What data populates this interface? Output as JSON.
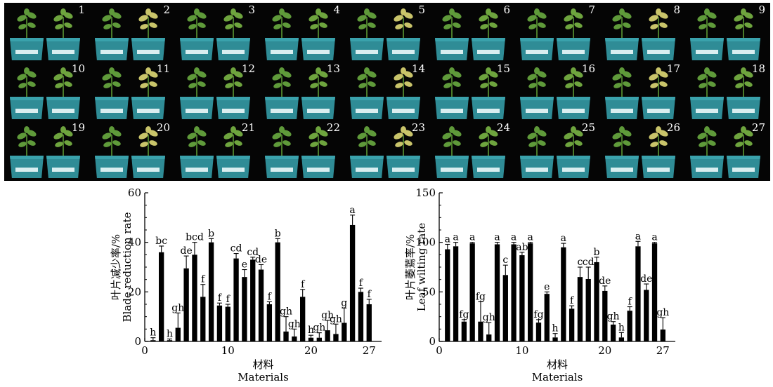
{
  "photo_panel": {
    "pot_numbers": [
      "1",
      "2",
      "3",
      "4",
      "5",
      "6",
      "7",
      "8",
      "9",
      "10",
      "11",
      "12",
      "13",
      "14",
      "15",
      "16",
      "17",
      "18",
      "19",
      "20",
      "21",
      "22",
      "23",
      "24",
      "25",
      "26",
      "27"
    ]
  },
  "chart_data": [
    {
      "type": "bar",
      "ylabel_cn": "叶片减少率/%",
      "ylabel_en": "Blade reduction rate",
      "xlabel_cn": "材料",
      "xlabel_en": "Materials",
      "ylim": [
        0,
        60
      ],
      "yticks": [
        0,
        20,
        40,
        60
      ],
      "xlim": [
        0,
        28.5
      ],
      "xticks": [
        0,
        10,
        20,
        27
      ],
      "bars": [
        {
          "x": 1,
          "value": 0.5,
          "err": 1,
          "sig": "h"
        },
        {
          "x": 2,
          "value": 36,
          "err": 2.5,
          "sig": "bc"
        },
        {
          "x": 3,
          "value": 0.5,
          "err": 0.5,
          "sig": "h"
        },
        {
          "x": 4,
          "value": 5.5,
          "err": 6,
          "sig": "gh"
        },
        {
          "x": 5,
          "value": 29.5,
          "err": 5,
          "sig": "de"
        },
        {
          "x": 6,
          "value": 35,
          "err": 5,
          "sig": "bcd"
        },
        {
          "x": 7,
          "value": 18,
          "err": 5,
          "sig": "f"
        },
        {
          "x": 8,
          "value": 40,
          "err": 1.5,
          "sig": "b"
        },
        {
          "x": 9,
          "value": 14.5,
          "err": 1,
          "sig": "f"
        },
        {
          "x": 10,
          "value": 14,
          "err": 1,
          "sig": "f"
        },
        {
          "x": 11,
          "value": 33.5,
          "err": 2,
          "sig": "cd"
        },
        {
          "x": 12,
          "value": 26,
          "err": 3,
          "sig": "e"
        },
        {
          "x": 13,
          "value": 33,
          "err": 1,
          "sig": "cd"
        },
        {
          "x": 14,
          "value": 29,
          "err": 2,
          "sig": "de"
        },
        {
          "x": 15,
          "value": 15,
          "err": 1,
          "sig": "f"
        },
        {
          "x": 16,
          "value": 40,
          "err": 1.5,
          "sig": "b"
        },
        {
          "x": 17,
          "value": 4,
          "err": 6,
          "sig": "gh"
        },
        {
          "x": 18,
          "value": 2,
          "err": 3,
          "sig": "gh"
        },
        {
          "x": 19,
          "value": 18,
          "err": 3,
          "sig": "f"
        },
        {
          "x": 20,
          "value": 1.5,
          "err": 1,
          "sig": "h"
        },
        {
          "x": 21,
          "value": 1.5,
          "err": 2,
          "sig": "gh"
        },
        {
          "x": 22,
          "value": 4.5,
          "err": 4,
          "sig": "gh"
        },
        {
          "x": 23,
          "value": 3,
          "err": 4,
          "sig": "gh"
        },
        {
          "x": 24,
          "value": 7.5,
          "err": 6,
          "sig": "g"
        },
        {
          "x": 25,
          "value": 47,
          "err": 4,
          "sig": "a"
        },
        {
          "x": 26,
          "value": 20,
          "err": 1.5,
          "sig": "f"
        },
        {
          "x": 27,
          "value": 15,
          "err": 2,
          "sig": "f"
        }
      ]
    },
    {
      "type": "bar",
      "ylabel_cn": "叶片萎蔫率/%",
      "ylabel_en": "Leaf wilting rate",
      "xlabel_cn": "材料",
      "xlabel_en": "Materials",
      "ylim": [
        0,
        150
      ],
      "yticks": [
        0,
        50,
        100,
        150
      ],
      "xlim": [
        0,
        28.5
      ],
      "xticks": [
        0,
        10,
        20,
        27
      ],
      "bars": [
        {
          "x": 1,
          "value": 93,
          "err": 5,
          "sig": "a"
        },
        {
          "x": 2,
          "value": 96,
          "err": 4,
          "sig": "a"
        },
        {
          "x": 3,
          "value": 20,
          "err": 2,
          "sig": "fg"
        },
        {
          "x": 4,
          "value": 99,
          "err": 1,
          "sig": "a"
        },
        {
          "x": 5,
          "value": 20,
          "err": 20,
          "sig": "fg"
        },
        {
          "x": 6,
          "value": 7,
          "err": 12,
          "sig": "gh"
        },
        {
          "x": 7,
          "value": 98,
          "err": 2,
          "sig": "a"
        },
        {
          "x": 8,
          "value": 67,
          "err": 10,
          "sig": "c"
        },
        {
          "x": 9,
          "value": 98,
          "err": 2,
          "sig": "a"
        },
        {
          "x": 10,
          "value": 87,
          "err": 3,
          "sig": "ab"
        },
        {
          "x": 11,
          "value": 99,
          "err": 1,
          "sig": "a"
        },
        {
          "x": 12,
          "value": 19,
          "err": 3,
          "sig": "fg"
        },
        {
          "x": 13,
          "value": 48,
          "err": 2,
          "sig": "e"
        },
        {
          "x": 14,
          "value": 4,
          "err": 4,
          "sig": "h"
        },
        {
          "x": 15,
          "value": 95,
          "err": 4,
          "sig": "a"
        },
        {
          "x": 16,
          "value": 33,
          "err": 3,
          "sig": "f"
        },
        {
          "x": 17,
          "value": 65,
          "err": 10,
          "sig": "c"
        },
        {
          "x": 18,
          "value": 63,
          "err": 12,
          "sig": "cd"
        },
        {
          "x": 19,
          "value": 80,
          "err": 5,
          "sig": "b"
        },
        {
          "x": 20,
          "value": 51,
          "err": 5,
          "sig": "de"
        },
        {
          "x": 21,
          "value": 17,
          "err": 3,
          "sig": "gh"
        },
        {
          "x": 22,
          "value": 4,
          "err": 5,
          "sig": "h"
        },
        {
          "x": 23,
          "value": 31,
          "err": 4,
          "sig": "f"
        },
        {
          "x": 24,
          "value": 96,
          "err": 5,
          "sig": "a"
        },
        {
          "x": 25,
          "value": 52,
          "err": 6,
          "sig": "de"
        },
        {
          "x": 26,
          "value": 99,
          "err": 1,
          "sig": "a"
        },
        {
          "x": 27,
          "value": 12,
          "err": 12,
          "sig": "gh"
        }
      ]
    }
  ]
}
